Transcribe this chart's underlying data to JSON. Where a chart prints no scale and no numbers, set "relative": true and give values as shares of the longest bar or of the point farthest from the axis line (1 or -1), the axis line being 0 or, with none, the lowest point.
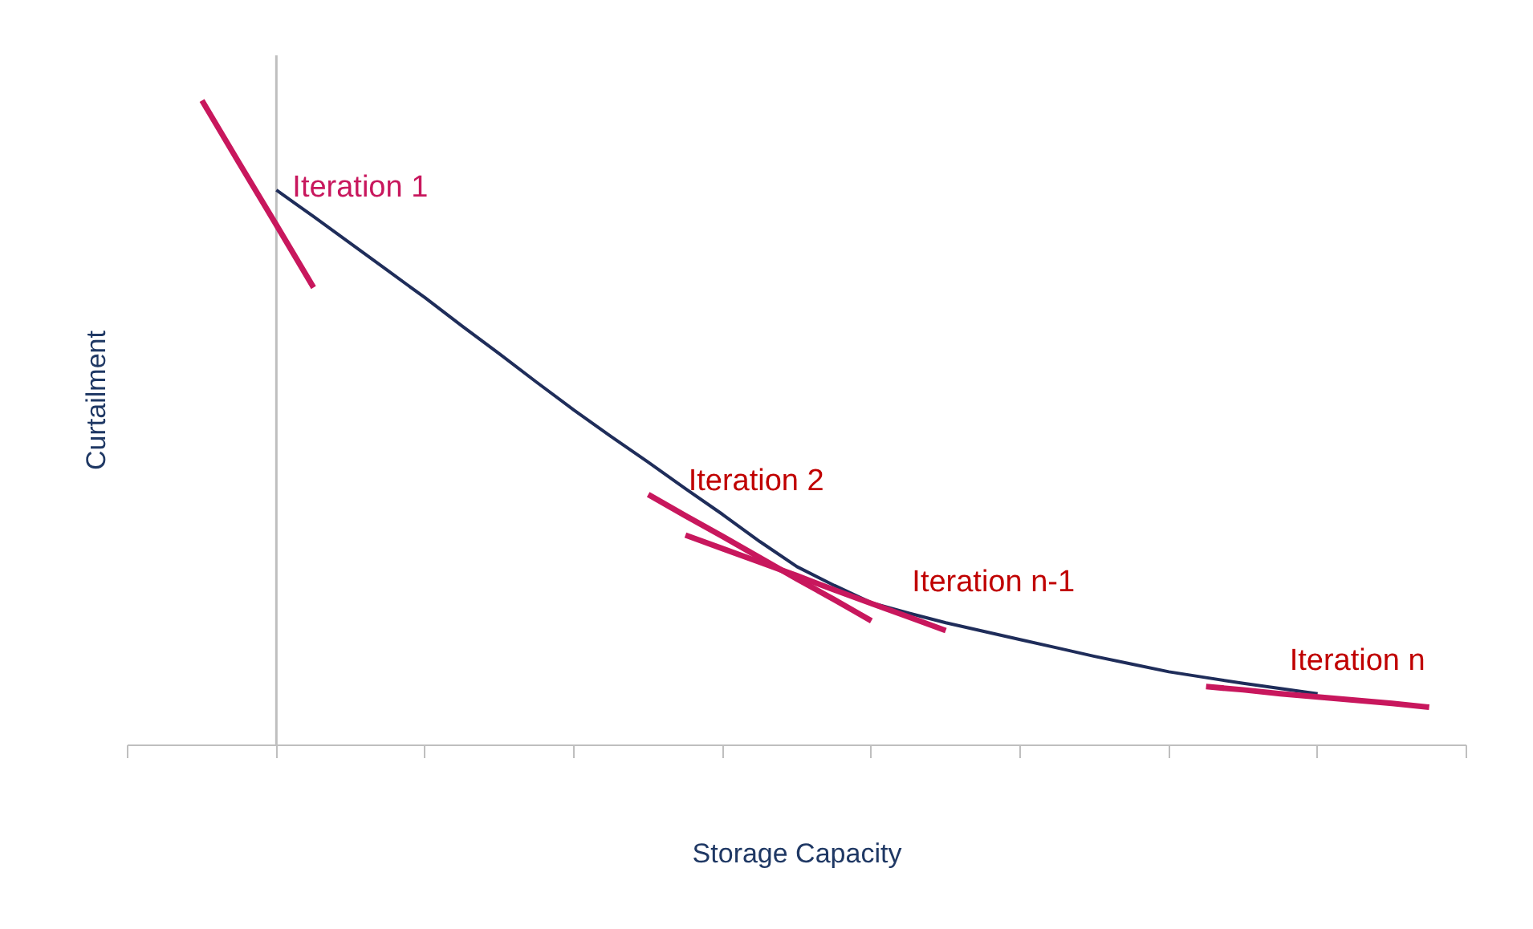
{
  "chart_data": {
    "type": "line",
    "relative": true,
    "xlabel": "Storage Capacity",
    "ylabel": "Curtailment",
    "categories": [
      null,
      null,
      null,
      null,
      null,
      null,
      null,
      null,
      null,
      null,
      null,
      null,
      null,
      null,
      null,
      null,
      null,
      null,
      null,
      null,
      null,
      null,
      null,
      null,
      null,
      null,
      null,
      null,
      null,
      null,
      null,
      null,
      null,
      null,
      null,
      null,
      null
    ],
    "series": [
      {
        "color": "#1f2d5a",
        "values": [
          null,
          null,
          null,
          null,
          0.861,
          0.82,
          0.778,
          0.736,
          0.694,
          0.65,
          0.607,
          0.563,
          0.52,
          0.479,
          0.439,
          0.398,
          0.358,
          0.316,
          0.277,
          0.248,
          0.221,
          0.205,
          0.19,
          0.177,
          0.164,
          0.151,
          0.138,
          0.126,
          0.114,
          0.105,
          0.096,
          0.088,
          0.08,
          null,
          null,
          null,
          null
        ]
      },
      {
        "name": "Iteration 1",
        "color": "#c8175d",
        "values": [
          null,
          null,
          1.0,
          0.903,
          0.807,
          0.71,
          null,
          null,
          null,
          null,
          null,
          null,
          null,
          null,
          null,
          null,
          null,
          null,
          null,
          null,
          null,
          null,
          null,
          null,
          null,
          null,
          null,
          null,
          null,
          null,
          null,
          null,
          null,
          null,
          null,
          null,
          null
        ]
      },
      {
        "name": "Iteration 2",
        "color": "#c8175d",
        "values": [
          null,
          null,
          null,
          null,
          null,
          null,
          null,
          null,
          null,
          null,
          null,
          null,
          null,
          null,
          0.389,
          0.356,
          0.324,
          0.291,
          0.258,
          0.226,
          0.193,
          null,
          null,
          null,
          null,
          null,
          null,
          null,
          null,
          null,
          null,
          null,
          null,
          null,
          null,
          null,
          null
        ]
      },
      {
        "name": "Iteration n-1",
        "color": "#c8175d",
        "values": [
          null,
          null,
          null,
          null,
          null,
          null,
          null,
          null,
          null,
          null,
          null,
          null,
          null,
          null,
          null,
          0.326,
          0.305,
          0.284,
          0.263,
          0.241,
          0.22,
          0.199,
          0.178,
          null,
          null,
          null,
          null,
          null,
          null,
          null,
          null,
          null,
          null,
          null,
          null,
          null,
          null
        ]
      },
      {
        "name": "Iteration n",
        "color": "#c8175d",
        "values": [
          null,
          null,
          null,
          null,
          null,
          null,
          null,
          null,
          null,
          null,
          null,
          null,
          null,
          null,
          null,
          null,
          null,
          null,
          null,
          null,
          null,
          null,
          null,
          null,
          null,
          null,
          null,
          null,
          null,
          0.091,
          0.086,
          0.08,
          0.075,
          0.07,
          0.065,
          0.059,
          null
        ]
      }
    ],
    "grid": false
  }
}
